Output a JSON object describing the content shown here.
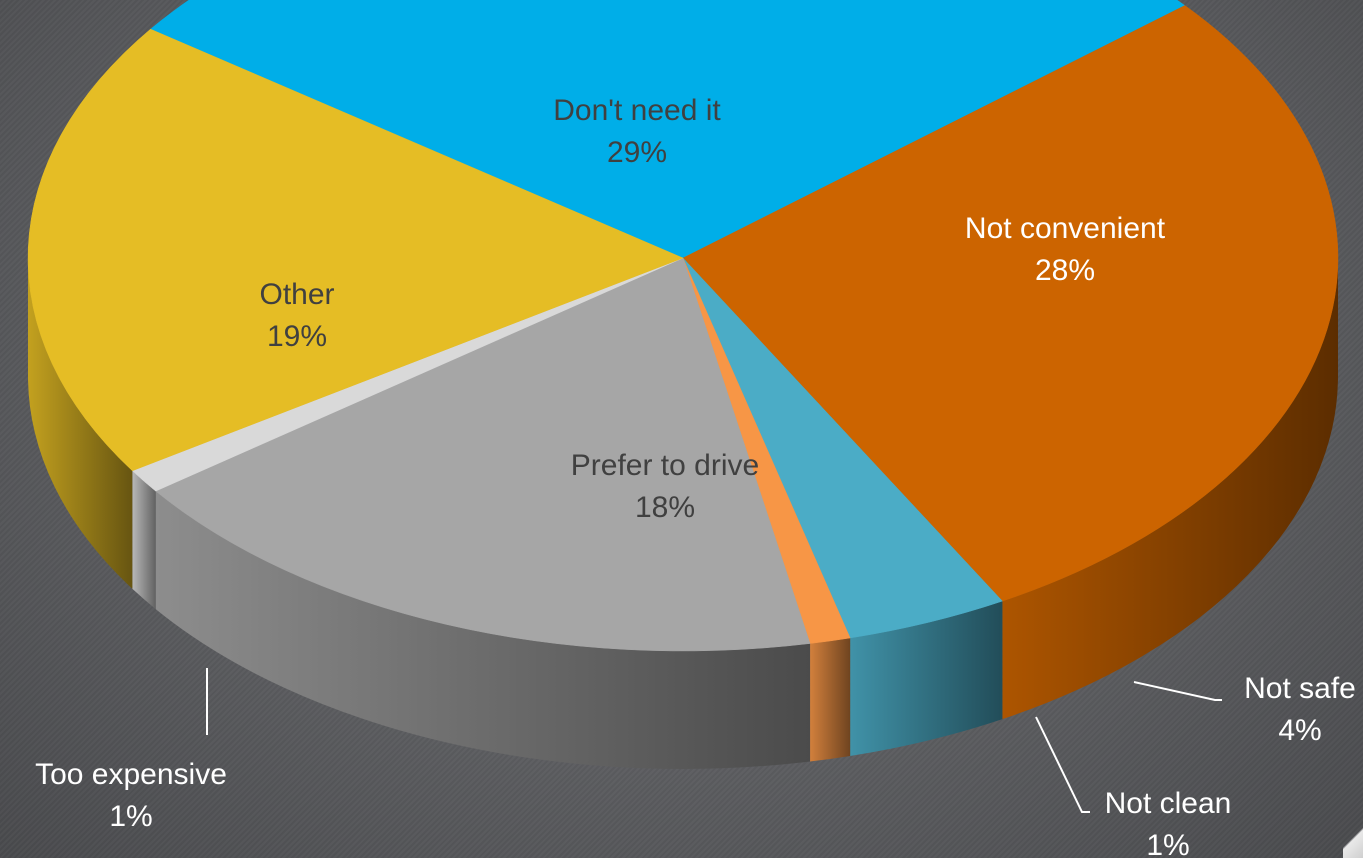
{
  "chart_data": {
    "type": "pie",
    "title": "",
    "slices": [
      {
        "label": "Don't need it",
        "value": 29,
        "pct_label": "29%",
        "color": "#00aee8"
      },
      {
        "label": "Not convenient",
        "value": 28,
        "pct_label": "28%",
        "color": "#cc6400"
      },
      {
        "label": "Not safe",
        "value": 4,
        "pct_label": "4%",
        "color": "#4bacc6"
      },
      {
        "label": "Not clean",
        "value": 1,
        "pct_label": "1%",
        "color": "#f79646"
      },
      {
        "label": "Prefer to drive",
        "value": 18,
        "pct_label": "18%",
        "color": "#a6a6a6"
      },
      {
        "label": "Too expensive",
        "value": 1,
        "pct_label": "1%",
        "color": "#d9d9d9"
      },
      {
        "label": "Other",
        "value": 19,
        "pct_label": "19%",
        "color": "#e5bd25"
      }
    ],
    "style": "3d-exploded-perspective",
    "legend": "none",
    "data_labels": "category-and-percent"
  }
}
